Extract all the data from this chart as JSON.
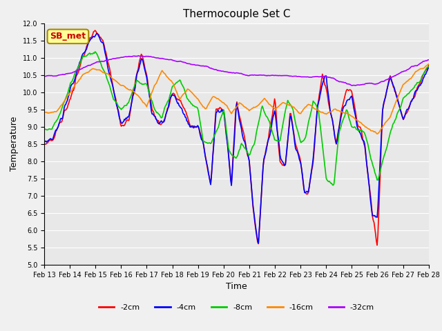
{
  "title": "Thermocouple Set C",
  "xlabel": "Time",
  "ylabel": "Temperature",
  "ylim": [
    5.0,
    12.0
  ],
  "yticks": [
    5.0,
    5.5,
    6.0,
    6.5,
    7.0,
    7.5,
    8.0,
    8.5,
    9.0,
    9.5,
    10.0,
    10.5,
    11.0,
    11.5,
    12.0
  ],
  "xtick_labels": [
    "Feb 13",
    "Feb 14",
    "Feb 15",
    "Feb 16",
    "Feb 17",
    "Feb 18",
    "Feb 19",
    "Feb 20",
    "Feb 21",
    "Feb 22",
    "Feb 23",
    "Feb 24",
    "Feb 25",
    "Feb 26",
    "Feb 27",
    "Feb 28"
  ],
  "colors": {
    "-2cm": "#ff0000",
    "-4cm": "#0000ff",
    "-8cm": "#00cc00",
    "-16cm": "#ff8800",
    "-32cm": "#aa00ff"
  },
  "annotation": "SB_met",
  "annotation_color": "#cc0000",
  "annotation_bg": "#ffff99",
  "plot_bg": "#e8e8e8",
  "fig_bg": "#f0f0f0",
  "linewidth": 1.2
}
